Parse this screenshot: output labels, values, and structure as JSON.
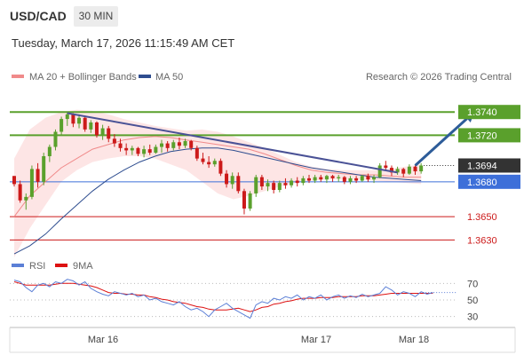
{
  "header": {
    "symbol": "USD/CAD",
    "timeframe": "30 MIN"
  },
  "timestamp": "Tuesday, March 17, 2026 11:15:49 AM CET",
  "legend": [
    {
      "label": "MA 20 + Bollinger Bands",
      "color": "#f08a8a"
    },
    {
      "label": "MA 50",
      "color": "#2e4d8f"
    }
  ],
  "credit": "Research © 2026 Trading Central",
  "colors": {
    "bull": "#5aa02c",
    "bear": "#cc1a1a",
    "resistance": "#5aa02c",
    "support": "#cc1a1a",
    "pivot": "#3d6fd9",
    "arrow": "#2d5c99",
    "trendline": "#4a5296"
  },
  "chart_data": [
    {
      "type": "candlestick",
      "x_axis": {
        "ticks": [
          "Mar 16",
          "Mar 17",
          "Mar 18"
        ]
      },
      "ylim": [
        1.3615,
        1.376
      ],
      "current_price": "1.3694",
      "levels": [
        {
          "value": 1.374,
          "label": "1.3740",
          "kind": "resistance"
        },
        {
          "value": 1.372,
          "label": "1.3720",
          "kind": "resistance"
        },
        {
          "value": 1.368,
          "label": "1.3680",
          "kind": "pivot"
        },
        {
          "value": 1.365,
          "label": "1.3650",
          "kind": "support"
        },
        {
          "value": 1.363,
          "label": "1.3630",
          "kind": "support"
        }
      ],
      "candles": [
        [
          1.3685,
          1.3685,
          1.3676,
          1.3678
        ],
        [
          1.3678,
          1.3681,
          1.3662,
          1.3664
        ],
        [
          1.3664,
          1.367,
          1.3656,
          1.3667
        ],
        [
          1.3667,
          1.3694,
          1.3665,
          1.3691
        ],
        [
          1.3691,
          1.3696,
          1.3675,
          1.368
        ],
        [
          1.368,
          1.3705,
          1.3677,
          1.3702
        ],
        [
          1.3702,
          1.3712,
          1.3697,
          1.371
        ],
        [
          1.371,
          1.3725,
          1.3707,
          1.3723
        ],
        [
          1.3723,
          1.3736,
          1.372,
          1.3734
        ],
        [
          1.3734,
          1.374,
          1.3728,
          1.3738
        ],
        [
          1.3738,
          1.3739,
          1.3727,
          1.373
        ],
        [
          1.373,
          1.3738,
          1.3726,
          1.3735
        ],
        [
          1.3735,
          1.3737,
          1.3723,
          1.3725
        ],
        [
          1.3725,
          1.3733,
          1.3722,
          1.3731
        ],
        [
          1.3731,
          1.3732,
          1.3718,
          1.372
        ],
        [
          1.372,
          1.3729,
          1.3716,
          1.3726
        ],
        [
          1.3726,
          1.3728,
          1.3714,
          1.3717
        ],
        [
          1.3717,
          1.3721,
          1.371,
          1.3713
        ],
        [
          1.3713,
          1.3717,
          1.3706,
          1.3709
        ],
        [
          1.3709,
          1.3713,
          1.3703,
          1.3707
        ],
        [
          1.3707,
          1.3711,
          1.3703,
          1.3709
        ],
        [
          1.3709,
          1.371,
          1.3702,
          1.3704
        ],
        [
          1.3704,
          1.3711,
          1.3701,
          1.3708
        ],
        [
          1.3708,
          1.3712,
          1.3703,
          1.3705
        ],
        [
          1.3705,
          1.3712,
          1.3704,
          1.371
        ],
        [
          1.371,
          1.3716,
          1.3705,
          1.3713
        ],
        [
          1.3713,
          1.3715,
          1.3706,
          1.3709
        ],
        [
          1.3709,
          1.3716,
          1.3707,
          1.3714
        ],
        [
          1.3714,
          1.3718,
          1.3708,
          1.3711
        ],
        [
          1.3711,
          1.3717,
          1.3709,
          1.3715
        ],
        [
          1.3715,
          1.3716,
          1.3707,
          1.3709
        ],
        [
          1.3709,
          1.3711,
          1.3698,
          1.37
        ],
        [
          1.37,
          1.3705,
          1.3695,
          1.3697
        ],
        [
          1.3697,
          1.3702,
          1.3692,
          1.3695
        ],
        [
          1.3695,
          1.37,
          1.3693,
          1.3698
        ],
        [
          1.3698,
          1.37,
          1.3685,
          1.3687
        ],
        [
          1.3687,
          1.369,
          1.3675,
          1.3678
        ],
        [
          1.3678,
          1.3688,
          1.3674,
          1.3685
        ],
        [
          1.3685,
          1.3688,
          1.367,
          1.3672
        ],
        [
          1.3672,
          1.3674,
          1.3652,
          1.3657
        ],
        [
          1.3657,
          1.3672,
          1.3655,
          1.367
        ],
        [
          1.367,
          1.3686,
          1.3667,
          1.3684
        ],
        [
          1.3684,
          1.3686,
          1.3673,
          1.3676
        ],
        [
          1.3676,
          1.3682,
          1.3672,
          1.3679
        ],
        [
          1.3679,
          1.3681,
          1.367,
          1.3673
        ],
        [
          1.3673,
          1.3681,
          1.3671,
          1.3679
        ],
        [
          1.3679,
          1.3683,
          1.3674,
          1.3677
        ],
        [
          1.3677,
          1.3683,
          1.3675,
          1.3681
        ],
        [
          1.3681,
          1.3684,
          1.3676,
          1.3679
        ],
        [
          1.3679,
          1.3685,
          1.3677,
          1.3683
        ],
        [
          1.3683,
          1.3686,
          1.3679,
          1.3681
        ],
        [
          1.3681,
          1.3686,
          1.3679,
          1.3684
        ],
        [
          1.3684,
          1.3686,
          1.368,
          1.3682
        ],
        [
          1.3682,
          1.3686,
          1.3679,
          1.3685
        ],
        [
          1.3685,
          1.3686,
          1.368,
          1.3683
        ],
        [
          1.3683,
          1.3686,
          1.368,
          1.3684
        ],
        [
          1.3684,
          1.3685,
          1.3678,
          1.368
        ],
        [
          1.368,
          1.3685,
          1.3678,
          1.3683
        ],
        [
          1.3683,
          1.3685,
          1.3679,
          1.3681
        ],
        [
          1.3681,
          1.3686,
          1.368,
          1.3685
        ],
        [
          1.3685,
          1.3687,
          1.368,
          1.3682
        ],
        [
          1.3682,
          1.3686,
          1.3679,
          1.3684
        ],
        [
          1.3684,
          1.3696,
          1.3683,
          1.3694
        ],
        [
          1.3694,
          1.3698,
          1.369,
          1.3692
        ],
        [
          1.3692,
          1.3694,
          1.3685,
          1.3688
        ],
        [
          1.3688,
          1.3693,
          1.3686,
          1.3691
        ],
        [
          1.3691,
          1.3692,
          1.3684,
          1.3687
        ],
        [
          1.3687,
          1.3695,
          1.3686,
          1.3693
        ],
        [
          1.3693,
          1.3694,
          1.3686,
          1.3689
        ],
        [
          1.3689,
          1.3696,
          1.3687,
          1.3694
        ]
      ],
      "ma20": [
        1.365,
        1.3668,
        1.368,
        1.3692,
        1.37,
        1.3708,
        1.3712,
        1.3716,
        1.3718,
        1.3719,
        1.3718,
        1.3716,
        1.3714,
        1.3712,
        1.371,
        1.3708,
        1.3704,
        1.3699,
        1.3694,
        1.369,
        1.3688,
        1.3687,
        1.3686,
        1.3686,
        1.3685,
        1.3684,
        1.3684
      ],
      "bb_upper": [
        1.37,
        1.3725,
        1.3735,
        1.374,
        1.3742,
        1.3741,
        1.3738,
        1.3734,
        1.3731,
        1.3728,
        1.3726,
        1.3724,
        1.3725,
        1.3723,
        1.3719,
        1.3714,
        1.3709,
        1.3703,
        1.3697,
        1.3693,
        1.3691,
        1.369,
        1.369,
        1.369,
        1.3691,
        1.3693,
        1.3695
      ],
      "bb_lower": [
        1.3615,
        1.364,
        1.366,
        1.368,
        1.369,
        1.3697,
        1.37,
        1.3702,
        1.3702,
        1.37,
        1.3695,
        1.369,
        1.368,
        1.367,
        1.3665,
        1.3668,
        1.3672,
        1.3676,
        1.3679,
        1.3681,
        1.3682,
        1.3682,
        1.3682,
        1.3681,
        1.368,
        1.3679,
        1.3678
      ],
      "ma50": [
        1.3618,
        1.3625,
        1.3635,
        1.3648,
        1.366,
        1.3672,
        1.3682,
        1.369,
        1.3697,
        1.3702,
        1.3706,
        1.3708,
        1.3709,
        1.3709,
        1.3707,
        1.3704,
        1.3701,
        1.3698,
        1.3695,
        1.3692,
        1.369,
        1.3688,
        1.3686,
        1.3684,
        1.3683,
        1.3682,
        1.3681
      ],
      "trendline": [
        [
          9,
          1.3739
        ],
        [
          65,
          1.3688
        ]
      ],
      "arrow": {
        "from": [
          68,
          1.3694
        ],
        "to": [
          78,
          1.374
        ]
      }
    },
    {
      "type": "line",
      "legend": [
        {
          "label": "RSI",
          "color": "#5b7fd6"
        },
        {
          "label": "9MA",
          "color": "#dd1111"
        }
      ],
      "ylim": [
        20,
        80
      ],
      "y_ticks": [
        "70",
        "50",
        "30"
      ],
      "rsi": [
        74,
        72,
        65,
        60,
        68,
        70,
        66,
        72,
        70,
        75,
        73,
        68,
        72,
        64,
        60,
        57,
        55,
        60,
        58,
        56,
        58,
        54,
        56,
        50,
        52,
        48,
        46,
        44,
        48,
        42,
        38,
        40,
        36,
        30,
        38,
        42,
        46,
        40,
        36,
        32,
        28,
        44,
        48,
        46,
        52,
        50,
        54,
        52,
        56,
        50,
        54,
        52,
        56,
        50,
        54,
        56,
        52,
        55,
        53,
        57,
        54,
        56,
        58,
        66,
        62,
        56,
        60,
        58,
        54,
        60,
        57,
        59
      ],
      "rsi_ma": [
        72,
        70,
        68,
        68,
        68,
        68,
        68,
        69,
        70,
        70,
        70,
        69,
        68,
        67,
        65,
        62,
        59,
        58,
        58,
        57,
        57,
        56,
        56,
        54,
        53,
        51,
        50,
        48,
        47,
        46,
        44,
        42,
        41,
        39,
        38,
        38,
        38,
        39,
        40,
        38,
        36,
        38,
        41,
        42,
        45,
        46,
        48,
        49,
        51,
        52,
        52,
        52,
        53,
        53,
        53,
        54,
        54,
        54,
        54,
        55,
        55,
        55,
        56,
        57,
        58,
        58,
        58,
        58,
        58,
        58,
        58,
        58
      ]
    }
  ]
}
